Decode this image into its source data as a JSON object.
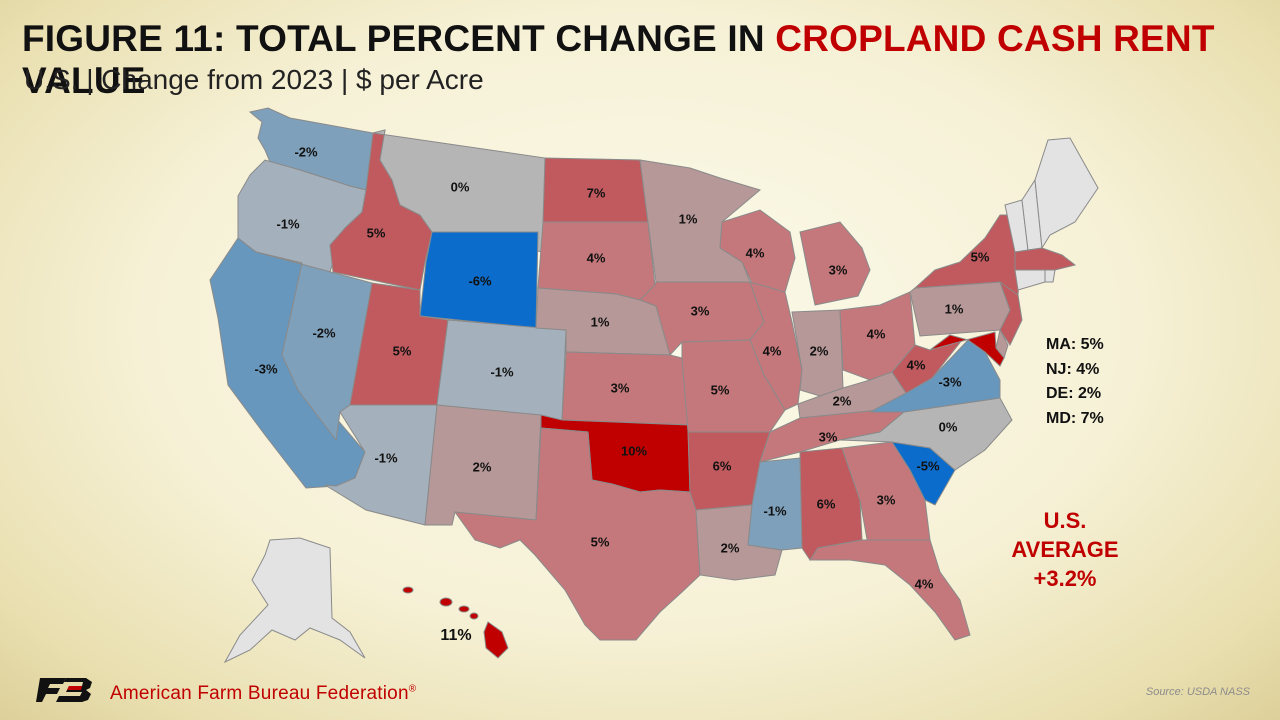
{
  "title": {
    "prefix": "FIGURE 11: TOTAL PERCENT CHANGE IN ",
    "highlight": "CROPLAND CASH RENT",
    "suffix": " VALUE"
  },
  "subtitle": "U.S. | Change from 2023 | $ per Acre",
  "colors": {
    "strong_red": "#c00000",
    "mid_red": "#c05a5e",
    "light_red": "#c4787b",
    "pale_red": "#b69898",
    "neutral_gray": "#b5b5b5",
    "light_blue": "#a4b0bb",
    "mid_blue": "#7fa0ba",
    "blue": "#6797bd",
    "strong_blue": "#0b6ccb",
    "no_data": "#e3e3e3"
  },
  "states": {
    "WA": {
      "name": "Washington",
      "value": "-2%"
    },
    "OR": {
      "name": "Oregon",
      "value": "-1%"
    },
    "CA": {
      "name": "California",
      "value": "-3%"
    },
    "NV": {
      "name": "Nevada",
      "value": "-2%"
    },
    "ID": {
      "name": "Idaho",
      "value": "5%"
    },
    "MT": {
      "name": "Montana",
      "value": "0%"
    },
    "WY": {
      "name": "Wyoming",
      "value": "-6%"
    },
    "UT": {
      "name": "Utah",
      "value": "5%"
    },
    "CO": {
      "name": "Colorado",
      "value": "-1%"
    },
    "AZ": {
      "name": "Arizona",
      "value": "-1%"
    },
    "NM": {
      "name": "New Mexico",
      "value": "2%"
    },
    "ND": {
      "name": "North Dakota",
      "value": "7%"
    },
    "SD": {
      "name": "South Dakota",
      "value": "4%"
    },
    "NE": {
      "name": "Nebraska",
      "value": "1%"
    },
    "KS": {
      "name": "Kansas",
      "value": "3%"
    },
    "OK": {
      "name": "Oklahoma",
      "value": "10%"
    },
    "TX": {
      "name": "Texas",
      "value": "5%"
    },
    "MN": {
      "name": "Minnesota",
      "value": "1%"
    },
    "IA": {
      "name": "Iowa",
      "value": "3%"
    },
    "MO": {
      "name": "Missouri",
      "value": "5%"
    },
    "AR": {
      "name": "Arkansas",
      "value": "6%"
    },
    "LA": {
      "name": "Louisiana",
      "value": "2%"
    },
    "WI": {
      "name": "Wisconsin",
      "value": "4%"
    },
    "IL": {
      "name": "Illinois",
      "value": "4%"
    },
    "MS": {
      "name": "Mississippi",
      "value": "-1%"
    },
    "MI": {
      "name": "Michigan",
      "value": "3%"
    },
    "IN": {
      "name": "Indiana",
      "value": "2%"
    },
    "OH": {
      "name": "Ohio",
      "value": "4%"
    },
    "KY": {
      "name": "Kentucky",
      "value": "2%"
    },
    "TN": {
      "name": "Tennessee",
      "value": "3%"
    },
    "AL": {
      "name": "Alabama",
      "value": "6%"
    },
    "GA": {
      "name": "Georgia",
      "value": "3%"
    },
    "FL": {
      "name": "Florida",
      "value": "4%"
    },
    "SC": {
      "name": "South Carolina",
      "value": "-5%"
    },
    "NC": {
      "name": "North Carolina",
      "value": "0%"
    },
    "VA": {
      "name": "Virginia",
      "value": "-3%"
    },
    "WV": {
      "name": "West Virginia",
      "value": "4%"
    },
    "PA": {
      "name": "Pennsylvania",
      "value": "1%"
    },
    "NY": {
      "name": "New York",
      "value": "5%"
    },
    "HI": {
      "name": "Hawaii",
      "value": "11%"
    },
    "MA": {
      "name": "Massachusetts",
      "value": "5%"
    },
    "NJ": {
      "name": "New Jersey",
      "value": "4%"
    },
    "DE": {
      "name": "Delaware",
      "value": "2%"
    },
    "MD": {
      "name": "Maryland",
      "value": "7%"
    }
  },
  "small_states_list": [
    "MA: 5%",
    "NJ: 4%",
    "DE: 2%",
    "MD: 7%"
  ],
  "us_average": {
    "line1": "U.S.",
    "line2": "AVERAGE",
    "line3": "+3.2%"
  },
  "footer": {
    "org": "American Farm Bureau Federation",
    "registered": "®",
    "source": "Source: USDA NASS"
  }
}
